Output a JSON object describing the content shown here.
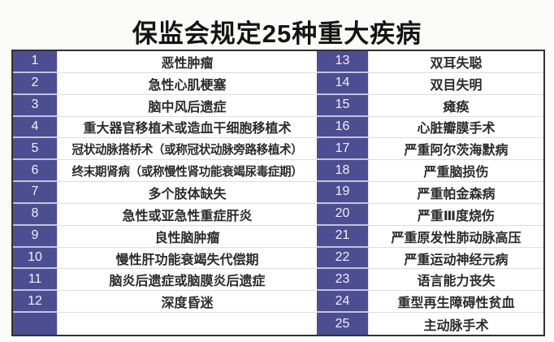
{
  "title": "保监会规定25种重大疾病",
  "colors": {
    "number_cell_bg": "#4d4d92",
    "number_text": "#f0f0f6",
    "disease_text": "#2b2b2b",
    "outer_border": "#323232",
    "page_background": "#fbfbfa"
  },
  "table": {
    "rows": [
      {
        "left_num": "1",
        "left_name": "恶性肿瘤",
        "right_num": "13",
        "right_name": "双耳失聪"
      },
      {
        "left_num": "2",
        "left_name": "急性心肌梗塞",
        "right_num": "14",
        "right_name": "双目失明"
      },
      {
        "left_num": "3",
        "left_name": "脑中风后遗症",
        "right_num": "15",
        "right_name": "瘫痪"
      },
      {
        "left_num": "4",
        "left_name": "重大器官移植术或造血干细胞移植术",
        "right_num": "16",
        "right_name": "心脏瓣膜手术"
      },
      {
        "left_num": "5",
        "left_name": "冠状动脉搭桥术（或称冠状动脉旁路移植术）",
        "right_num": "17",
        "right_name": "严重阿尔茨海默病"
      },
      {
        "left_num": "6",
        "left_name": "终末期肾病（或称慢性肾功能衰竭尿毒症期）",
        "right_num": "18",
        "right_name": "严重脑损伤"
      },
      {
        "left_num": "7",
        "left_name": "多个肢体缺失",
        "right_num": "19",
        "right_name": "严重帕金森病"
      },
      {
        "left_num": "8",
        "left_name": "急性或亚急性重症肝炎",
        "right_num": "20",
        "right_name": "严重Ⅲ度烧伤"
      },
      {
        "left_num": "9",
        "left_name": "良性脑肿瘤",
        "right_num": "21",
        "right_name": "严重原发性肺动脉高压"
      },
      {
        "left_num": "10",
        "left_name": "慢性肝功能衰竭失代偿期",
        "right_num": "22",
        "right_name": "严重运动神经元病"
      },
      {
        "left_num": "11",
        "left_name": "脑炎后遗症或脑膜炎后遗症",
        "right_num": "23",
        "right_name": "语言能力丧失"
      },
      {
        "left_num": "12",
        "left_name": "深度昏迷",
        "right_num": "24",
        "right_name": "重型再生障碍性贫血"
      },
      {
        "left_num": "",
        "left_name": "",
        "right_num": "25",
        "right_name": "主动脉手术"
      }
    ]
  }
}
